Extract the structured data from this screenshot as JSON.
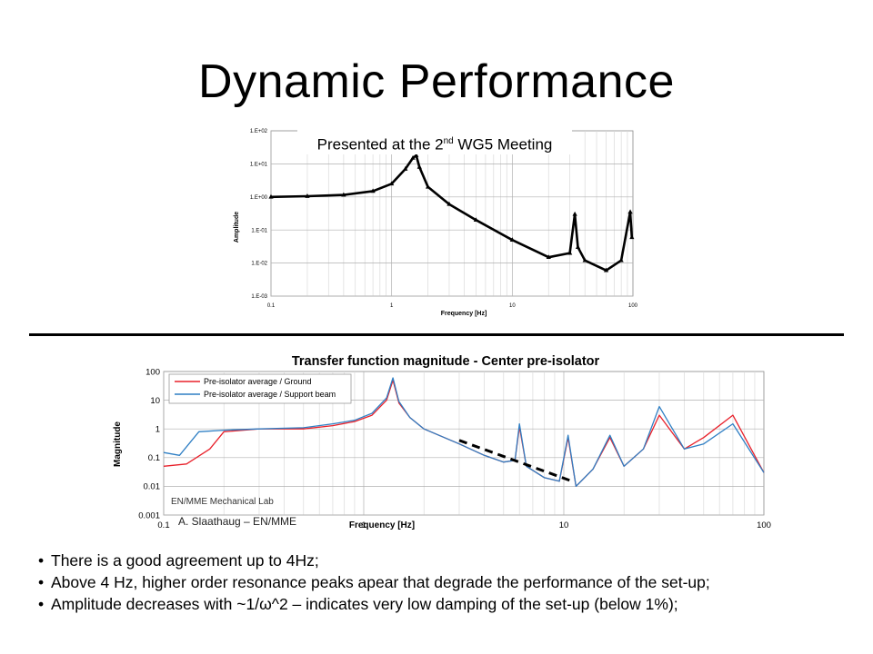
{
  "slide": {
    "title": "Dynamic Performance",
    "caption_main": "Presented at the 2",
    "caption_sup": "nd",
    "caption_tail": " WG5 Meeting",
    "credit": "A. Slaathaug – EN/MME",
    "bullets": [
      "There is a good agreement up to 4Hz;",
      "Above 4 Hz, higher order resonance peaks apear that degrade the performance of the set-up;",
      "Amplitude decreases with ~1/ω^2 – indicates very low damping of the set-up (below 1%);"
    ]
  },
  "chart_data": [
    {
      "type": "scatter",
      "title": "",
      "xlabel": "Frequency [Hz]",
      "ylabel": "Amplitude",
      "x_scale": "log",
      "y_scale": "log",
      "xlim": [
        0.1,
        100
      ],
      "ylim": [
        0.001,
        100
      ],
      "x_ticks": [
        "0.1",
        "1",
        "10",
        "100"
      ],
      "y_ticks": [
        "1.E-03",
        "1.E-02",
        "1.E-01",
        "1.E+00",
        "1.E+01",
        "1.E+02"
      ],
      "grid": true,
      "series": [
        {
          "color": "#000000",
          "marker": "triangle",
          "x": [
            0.1,
            0.2,
            0.4,
            0.7,
            1.0,
            1.3,
            1.5,
            1.6,
            1.7,
            2.0,
            3.0,
            5.0,
            10.0,
            20.0,
            30.0,
            33.0,
            35.0,
            40.0,
            60.0,
            80.0,
            95.0,
            98.0
          ],
          "y": [
            1.0,
            1.05,
            1.15,
            1.5,
            2.5,
            7.0,
            15.0,
            18.0,
            8.0,
            2.0,
            0.6,
            0.2,
            0.05,
            0.015,
            0.02,
            0.3,
            0.03,
            0.012,
            0.006,
            0.012,
            0.35,
            0.06
          ]
        }
      ]
    },
    {
      "type": "line",
      "title": "Transfer function magnitude - Center pre-isolator",
      "xlabel": "Frequency [Hz]",
      "ylabel": "Magnitude",
      "x_scale": "log",
      "y_scale": "log",
      "xlim": [
        0.1,
        100
      ],
      "ylim": [
        0.001,
        100
      ],
      "x_ticks": [
        "0.1",
        "1",
        "10",
        "100"
      ],
      "y_ticks": [
        "0.001",
        "0.01",
        "0.1",
        "1",
        "10",
        "100"
      ],
      "grid": true,
      "legend_position": "top-left",
      "annotation": "EN/MME Mechanical Lab",
      "series": [
        {
          "name": "Pre-isolator average / Ground",
          "color": "#e8202a",
          "x": [
            0.1,
            0.13,
            0.17,
            0.2,
            0.3,
            0.5,
            0.7,
            0.9,
            1.1,
            1.3,
            1.4,
            1.5,
            1.7,
            2.0,
            3.0,
            4.0,
            5.0,
            5.7,
            6.0,
            6.5,
            8.0,
            9.5,
            10.5,
            11.5,
            14.0,
            17.0,
            20.0,
            25.0,
            30.0,
            40.0,
            50.0,
            70.0,
            100.0
          ],
          "y": [
            0.05,
            0.06,
            0.2,
            0.8,
            1.0,
            1.0,
            1.3,
            1.8,
            3.0,
            10.0,
            50.0,
            8.0,
            2.5,
            1.0,
            0.3,
            0.12,
            0.07,
            0.08,
            1.2,
            0.05,
            0.02,
            0.015,
            0.5,
            0.01,
            0.04,
            0.5,
            0.05,
            0.2,
            3.0,
            0.2,
            0.5,
            3.0,
            0.03
          ]
        },
        {
          "name": "Pre-isolator average / Support beam",
          "color": "#2f7fc4",
          "x": [
            0.1,
            0.12,
            0.15,
            0.2,
            0.3,
            0.5,
            0.7,
            0.9,
            1.1,
            1.3,
            1.4,
            1.5,
            1.7,
            2.0,
            3.0,
            4.0,
            5.0,
            5.7,
            6.0,
            6.5,
            8.0,
            9.5,
            10.5,
            11.5,
            14.0,
            17.0,
            20.0,
            25.0,
            30.0,
            40.0,
            50.0,
            70.0,
            100.0
          ],
          "y": [
            0.15,
            0.12,
            0.8,
            0.9,
            1.0,
            1.1,
            1.5,
            2.0,
            3.5,
            12.0,
            60.0,
            9.0,
            2.5,
            1.0,
            0.3,
            0.12,
            0.07,
            0.08,
            1.5,
            0.05,
            0.02,
            0.015,
            0.6,
            0.01,
            0.04,
            0.6,
            0.05,
            0.2,
            6.0,
            0.2,
            0.3,
            1.5,
            0.03
          ]
        },
        {
          "name": "",
          "color": "#000000",
          "style": "dashed",
          "x": [
            3.0,
            11.0
          ],
          "y": [
            0.4,
            0.015
          ]
        }
      ]
    }
  ]
}
